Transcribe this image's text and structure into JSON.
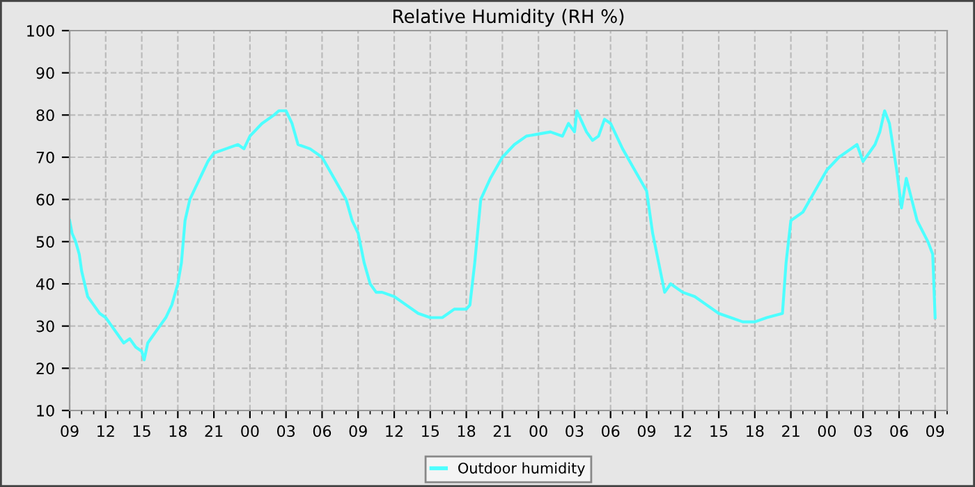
{
  "chart_data": {
    "type": "line",
    "title": "Relative Humidity (RH %)",
    "xlim": [
      9,
      82
    ],
    "ylim": [
      10,
      100
    ],
    "yticks": [
      10,
      20,
      30,
      40,
      50,
      60,
      70,
      80,
      90,
      100
    ],
    "xticks": [
      {
        "value": 9,
        "label": "09"
      },
      {
        "value": 10,
        "label": null
      },
      {
        "value": 11,
        "label": null
      },
      {
        "value": 12,
        "label": "12"
      },
      {
        "value": 13,
        "label": null
      },
      {
        "value": 14,
        "label": null
      },
      {
        "value": 15,
        "label": "15"
      },
      {
        "value": 16,
        "label": null
      },
      {
        "value": 17,
        "label": null
      },
      {
        "value": 18,
        "label": "18"
      },
      {
        "value": 19,
        "label": null
      },
      {
        "value": 20,
        "label": null
      },
      {
        "value": 21,
        "label": "21"
      },
      {
        "value": 22,
        "label": null
      },
      {
        "value": 23,
        "label": null
      },
      {
        "value": 24,
        "label": "00"
      },
      {
        "value": 25,
        "label": null
      },
      {
        "value": 26,
        "label": null
      },
      {
        "value": 27,
        "label": "03"
      },
      {
        "value": 28,
        "label": null
      },
      {
        "value": 29,
        "label": null
      },
      {
        "value": 30,
        "label": "06"
      },
      {
        "value": 31,
        "label": null
      },
      {
        "value": 32,
        "label": null
      },
      {
        "value": 33,
        "label": "09"
      },
      {
        "value": 34,
        "label": null
      },
      {
        "value": 35,
        "label": null
      },
      {
        "value": 36,
        "label": "12"
      },
      {
        "value": 37,
        "label": null
      },
      {
        "value": 38,
        "label": null
      },
      {
        "value": 39,
        "label": "15"
      },
      {
        "value": 40,
        "label": null
      },
      {
        "value": 41,
        "label": null
      },
      {
        "value": 42,
        "label": "18"
      },
      {
        "value": 43,
        "label": null
      },
      {
        "value": 44,
        "label": null
      },
      {
        "value": 45,
        "label": "21"
      },
      {
        "value": 46,
        "label": null
      },
      {
        "value": 47,
        "label": null
      },
      {
        "value": 48,
        "label": "00"
      },
      {
        "value": 49,
        "label": null
      },
      {
        "value": 50,
        "label": null
      },
      {
        "value": 51,
        "label": "03"
      },
      {
        "value": 52,
        "label": null
      },
      {
        "value": 53,
        "label": null
      },
      {
        "value": 54,
        "label": "06"
      },
      {
        "value": 55,
        "label": null
      },
      {
        "value": 56,
        "label": null
      },
      {
        "value": 57,
        "label": "09"
      },
      {
        "value": 58,
        "label": null
      },
      {
        "value": 59,
        "label": null
      },
      {
        "value": 60,
        "label": "12"
      },
      {
        "value": 61,
        "label": null
      },
      {
        "value": 62,
        "label": null
      },
      {
        "value": 63,
        "label": "15"
      },
      {
        "value": 64,
        "label": null
      },
      {
        "value": 65,
        "label": null
      },
      {
        "value": 66,
        "label": "18"
      },
      {
        "value": 67,
        "label": null
      },
      {
        "value": 68,
        "label": null
      },
      {
        "value": 69,
        "label": "21"
      },
      {
        "value": 70,
        "label": null
      },
      {
        "value": 71,
        "label": null
      },
      {
        "value": 72,
        "label": "00"
      },
      {
        "value": 73,
        "label": null
      },
      {
        "value": 74,
        "label": null
      },
      {
        "value": 75,
        "label": "03"
      },
      {
        "value": 76,
        "label": null
      },
      {
        "value": 77,
        "label": null
      },
      {
        "value": 78,
        "label": "06"
      },
      {
        "value": 79,
        "label": null
      },
      {
        "value": 80,
        "label": null
      },
      {
        "value": 81,
        "label": "09"
      },
      {
        "value": 82,
        "label": null
      }
    ],
    "grid": true,
    "legend": "bottom",
    "line_style": "solid",
    "marker": "none",
    "series": [
      {
        "name": "Outdoor humidity",
        "color": "#4dffff",
        "x": [
          9,
          9.2,
          9.5,
          9.8,
          10,
          10.5,
          11,
          11.5,
          12,
          12.5,
          13,
          13.5,
          14,
          14.5,
          15,
          15.2,
          15.5,
          16,
          16.5,
          17,
          17.5,
          18,
          18.3,
          18.6,
          19,
          19.5,
          20,
          20.5,
          21,
          22,
          23,
          23.5,
          24,
          25,
          26,
          26.4,
          27,
          27.5,
          28,
          29,
          30,
          31,
          32,
          32.5,
          33,
          33.5,
          34,
          34.5,
          35,
          36,
          37,
          38,
          39,
          40,
          41,
          42,
          42.3,
          42.7,
          43.2,
          44,
          45,
          46,
          47,
          48,
          49,
          50,
          50.5,
          51,
          51.2,
          52,
          52.5,
          53,
          53.5,
          54,
          55,
          56,
          57,
          57.5,
          58,
          58.5,
          59,
          60,
          61,
          62,
          63,
          64,
          65,
          66,
          67,
          68.3,
          68.6,
          69,
          70,
          71,
          72,
          73,
          74,
          74.5,
          75,
          75.5,
          76,
          76.4,
          76.8,
          77.2,
          77.8,
          78.2,
          78.6,
          79.5,
          80.4,
          80.8,
          81
        ],
        "values": [
          55,
          52,
          50,
          47,
          43,
          37,
          35,
          33,
          32,
          30,
          28,
          26,
          27,
          25,
          24,
          22,
          26,
          28,
          30,
          32,
          35,
          40,
          45,
          55,
          60,
          63,
          66,
          69,
          71,
          72,
          73,
          72,
          75,
          78,
          80,
          81,
          81,
          78,
          73,
          72,
          70,
          65,
          60,
          55,
          52,
          45,
          40,
          38,
          38,
          37,
          35,
          33,
          32,
          32,
          34,
          34,
          35,
          45,
          60,
          65,
          70,
          73,
          75,
          75.5,
          76,
          75,
          78,
          76,
          81,
          76,
          74,
          75,
          79,
          78,
          72,
          67,
          62,
          52,
          45,
          38,
          40,
          38,
          37,
          35,
          33,
          32,
          31,
          31,
          32,
          33,
          45,
          55,
          57,
          62,
          67,
          70,
          72,
          73,
          69,
          71,
          73,
          76,
          81,
          78,
          67,
          58,
          65,
          55,
          50,
          47,
          32
        ]
      }
    ]
  }
}
